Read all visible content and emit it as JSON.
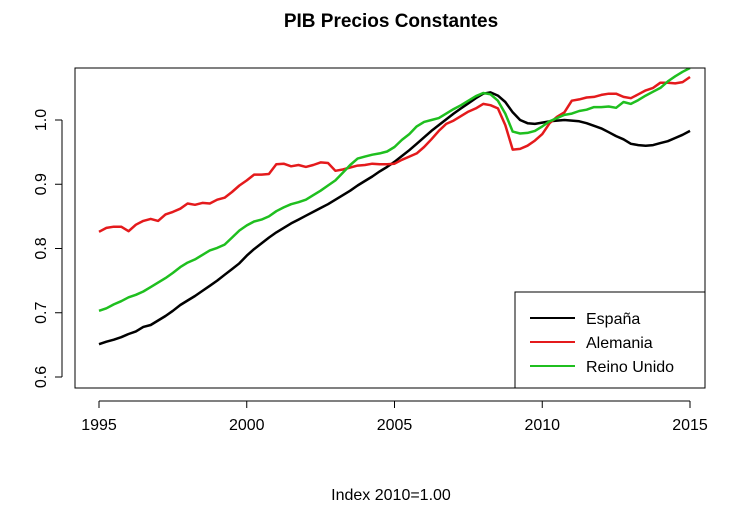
{
  "chart_data": {
    "type": "line",
    "title": "PIB Precios Constantes",
    "xlabel": "Index 2010=1.00",
    "ylabel": "",
    "xlim": [
      1995,
      2015
    ],
    "ylim": [
      0.6,
      1.08
    ],
    "x_ticks": [
      1995,
      2000,
      2005,
      2010,
      2015
    ],
    "y_ticks": [
      0.6,
      0.7,
      0.8,
      0.9,
      1.0
    ],
    "y_tick_labels": [
      "0.6",
      "0.7",
      "0.8",
      "0.9",
      "1.0"
    ],
    "grid": false,
    "legend_position": "bottom-right",
    "series": [
      {
        "name": "España",
        "color": "#000000",
        "points": [
          [
            1995.0,
            0.651
          ],
          [
            1995.25,
            0.655
          ],
          [
            1995.5,
            0.658
          ],
          [
            1995.75,
            0.662
          ],
          [
            1996.0,
            0.667
          ],
          [
            1996.25,
            0.671
          ],
          [
            1996.5,
            0.678
          ],
          [
            1996.75,
            0.681
          ],
          [
            1997.0,
            0.688
          ],
          [
            1997.25,
            0.695
          ],
          [
            1997.5,
            0.703
          ],
          [
            1997.75,
            0.712
          ],
          [
            1998.0,
            0.719
          ],
          [
            1998.25,
            0.726
          ],
          [
            1998.5,
            0.734
          ],
          [
            1998.75,
            0.742
          ],
          [
            1999.0,
            0.75
          ],
          [
            1999.25,
            0.759
          ],
          [
            1999.5,
            0.768
          ],
          [
            1999.75,
            0.777
          ],
          [
            2000.0,
            0.789
          ],
          [
            2000.25,
            0.799
          ],
          [
            2000.5,
            0.808
          ],
          [
            2000.75,
            0.817
          ],
          [
            2001.0,
            0.825
          ],
          [
            2001.25,
            0.832
          ],
          [
            2001.5,
            0.839
          ],
          [
            2001.75,
            0.845
          ],
          [
            2002.0,
            0.851
          ],
          [
            2002.25,
            0.857
          ],
          [
            2002.5,
            0.863
          ],
          [
            2002.75,
            0.869
          ],
          [
            2003.0,
            0.876
          ],
          [
            2003.25,
            0.883
          ],
          [
            2003.5,
            0.89
          ],
          [
            2003.75,
            0.898
          ],
          [
            2004.0,
            0.905
          ],
          [
            2004.25,
            0.912
          ],
          [
            2004.5,
            0.92
          ],
          [
            2004.75,
            0.927
          ],
          [
            2005.0,
            0.935
          ],
          [
            2005.25,
            0.944
          ],
          [
            2005.5,
            0.953
          ],
          [
            2005.75,
            0.963
          ],
          [
            2006.0,
            0.973
          ],
          [
            2006.25,
            0.983
          ],
          [
            2006.5,
            0.992
          ],
          [
            2006.75,
            1.001
          ],
          [
            2007.0,
            1.01
          ],
          [
            2007.25,
            1.018
          ],
          [
            2007.5,
            1.026
          ],
          [
            2007.75,
            1.034
          ],
          [
            2008.0,
            1.041
          ],
          [
            2008.25,
            1.043
          ],
          [
            2008.5,
            1.038
          ],
          [
            2008.75,
            1.028
          ],
          [
            2009.0,
            1.012
          ],
          [
            2009.25,
            1.0
          ],
          [
            2009.5,
            0.995
          ],
          [
            2009.75,
            0.994
          ],
          [
            2010.0,
            0.996
          ],
          [
            2010.25,
            0.998
          ],
          [
            2010.5,
            0.999
          ],
          [
            2010.75,
            1.0
          ],
          [
            2011.0,
            0.999
          ],
          [
            2011.25,
            0.998
          ],
          [
            2011.5,
            0.995
          ],
          [
            2011.75,
            0.991
          ],
          [
            2012.0,
            0.987
          ],
          [
            2012.25,
            0.981
          ],
          [
            2012.5,
            0.975
          ],
          [
            2012.75,
            0.97
          ],
          [
            2013.0,
            0.963
          ],
          [
            2013.25,
            0.961
          ],
          [
            2013.5,
            0.96
          ],
          [
            2013.75,
            0.961
          ],
          [
            2014.0,
            0.964
          ],
          [
            2014.25,
            0.967
          ],
          [
            2014.5,
            0.972
          ],
          [
            2014.75,
            0.977
          ],
          [
            2015.0,
            0.983
          ]
        ]
      },
      {
        "name": "Alemania",
        "color": "#e41a1c",
        "points": [
          [
            1995.0,
            0.826
          ],
          [
            1995.25,
            0.832
          ],
          [
            1995.5,
            0.834
          ],
          [
            1995.75,
            0.834
          ],
          [
            1996.0,
            0.827
          ],
          [
            1996.25,
            0.837
          ],
          [
            1996.5,
            0.843
          ],
          [
            1996.75,
            0.846
          ],
          [
            1997.0,
            0.843
          ],
          [
            1997.25,
            0.853
          ],
          [
            1997.5,
            0.857
          ],
          [
            1997.75,
            0.862
          ],
          [
            1998.0,
            0.87
          ],
          [
            1998.25,
            0.868
          ],
          [
            1998.5,
            0.871
          ],
          [
            1998.75,
            0.87
          ],
          [
            1999.0,
            0.876
          ],
          [
            1999.25,
            0.879
          ],
          [
            1999.5,
            0.888
          ],
          [
            1999.75,
            0.898
          ],
          [
            2000.0,
            0.906
          ],
          [
            2000.25,
            0.915
          ],
          [
            2000.5,
            0.915
          ],
          [
            2000.75,
            0.916
          ],
          [
            2001.0,
            0.931
          ],
          [
            2001.25,
            0.932
          ],
          [
            2001.5,
            0.928
          ],
          [
            2001.75,
            0.93
          ],
          [
            2002.0,
            0.927
          ],
          [
            2002.25,
            0.93
          ],
          [
            2002.5,
            0.934
          ],
          [
            2002.75,
            0.933
          ],
          [
            2003.0,
            0.921
          ],
          [
            2003.25,
            0.923
          ],
          [
            2003.5,
            0.926
          ],
          [
            2003.75,
            0.929
          ],
          [
            2004.0,
            0.93
          ],
          [
            2004.25,
            0.932
          ],
          [
            2004.5,
            0.931
          ],
          [
            2004.75,
            0.931
          ],
          [
            2005.0,
            0.932
          ],
          [
            2005.25,
            0.938
          ],
          [
            2005.5,
            0.943
          ],
          [
            2005.75,
            0.948
          ],
          [
            2006.0,
            0.958
          ],
          [
            2006.25,
            0.97
          ],
          [
            2006.5,
            0.983
          ],
          [
            2006.75,
            0.994
          ],
          [
            2007.0,
            0.999
          ],
          [
            2007.25,
            1.006
          ],
          [
            2007.5,
            1.013
          ],
          [
            2007.75,
            1.018
          ],
          [
            2008.0,
            1.025
          ],
          [
            2008.25,
            1.023
          ],
          [
            2008.5,
            1.018
          ],
          [
            2008.75,
            0.992
          ],
          [
            2009.0,
            0.954
          ],
          [
            2009.25,
            0.955
          ],
          [
            2009.5,
            0.96
          ],
          [
            2009.75,
            0.968
          ],
          [
            2010.0,
            0.978
          ],
          [
            2010.25,
            0.995
          ],
          [
            2010.5,
            1.005
          ],
          [
            2010.75,
            1.012
          ],
          [
            2011.0,
            1.03
          ],
          [
            2011.25,
            1.032
          ],
          [
            2011.5,
            1.035
          ],
          [
            2011.75,
            1.036
          ],
          [
            2012.0,
            1.039
          ],
          [
            2012.25,
            1.041
          ],
          [
            2012.5,
            1.041
          ],
          [
            2012.75,
            1.036
          ],
          [
            2013.0,
            1.034
          ],
          [
            2013.25,
            1.04
          ],
          [
            2013.5,
            1.046
          ],
          [
            2013.75,
            1.05
          ],
          [
            2014.0,
            1.058
          ],
          [
            2014.25,
            1.058
          ],
          [
            2014.5,
            1.057
          ],
          [
            2014.75,
            1.059
          ],
          [
            2015.0,
            1.067
          ]
        ]
      },
      {
        "name": "Reino Unido",
        "color": "#1fbf1f",
        "points": [
          [
            1995.0,
            0.703
          ],
          [
            1995.25,
            0.707
          ],
          [
            1995.5,
            0.713
          ],
          [
            1995.75,
            0.718
          ],
          [
            1996.0,
            0.724
          ],
          [
            1996.25,
            0.728
          ],
          [
            1996.5,
            0.733
          ],
          [
            1996.75,
            0.74
          ],
          [
            1997.0,
            0.747
          ],
          [
            1997.25,
            0.754
          ],
          [
            1997.5,
            0.762
          ],
          [
            1997.75,
            0.771
          ],
          [
            1998.0,
            0.778
          ],
          [
            1998.25,
            0.783
          ],
          [
            1998.5,
            0.79
          ],
          [
            1998.75,
            0.797
          ],
          [
            1999.0,
            0.801
          ],
          [
            1999.25,
            0.806
          ],
          [
            1999.5,
            0.817
          ],
          [
            1999.75,
            0.828
          ],
          [
            2000.0,
            0.836
          ],
          [
            2000.25,
            0.842
          ],
          [
            2000.5,
            0.845
          ],
          [
            2000.75,
            0.85
          ],
          [
            2001.0,
            0.858
          ],
          [
            2001.25,
            0.864
          ],
          [
            2001.5,
            0.869
          ],
          [
            2001.75,
            0.872
          ],
          [
            2002.0,
            0.876
          ],
          [
            2002.25,
            0.883
          ],
          [
            2002.5,
            0.89
          ],
          [
            2002.75,
            0.898
          ],
          [
            2003.0,
            0.906
          ],
          [
            2003.25,
            0.918
          ],
          [
            2003.5,
            0.93
          ],
          [
            2003.75,
            0.94
          ],
          [
            2004.0,
            0.943
          ],
          [
            2004.25,
            0.946
          ],
          [
            2004.5,
            0.948
          ],
          [
            2004.75,
            0.951
          ],
          [
            2005.0,
            0.958
          ],
          [
            2005.25,
            0.969
          ],
          [
            2005.5,
            0.978
          ],
          [
            2005.75,
            0.99
          ],
          [
            2006.0,
            0.997
          ],
          [
            2006.25,
            1.0
          ],
          [
            2006.5,
            1.003
          ],
          [
            2006.75,
            1.01
          ],
          [
            2007.0,
            1.017
          ],
          [
            2007.25,
            1.023
          ],
          [
            2007.5,
            1.03
          ],
          [
            2007.75,
            1.037
          ],
          [
            2008.0,
            1.042
          ],
          [
            2008.25,
            1.04
          ],
          [
            2008.5,
            1.03
          ],
          [
            2008.75,
            1.01
          ],
          [
            2009.0,
            0.982
          ],
          [
            2009.25,
            0.979
          ],
          [
            2009.5,
            0.98
          ],
          [
            2009.75,
            0.983
          ],
          [
            2010.0,
            0.99
          ],
          [
            2010.25,
            0.998
          ],
          [
            2010.5,
            1.003
          ],
          [
            2010.75,
            1.008
          ],
          [
            2011.0,
            1.01
          ],
          [
            2011.25,
            1.014
          ],
          [
            2011.5,
            1.016
          ],
          [
            2011.75,
            1.02
          ],
          [
            2012.0,
            1.02
          ],
          [
            2012.25,
            1.021
          ],
          [
            2012.5,
            1.019
          ],
          [
            2012.75,
            1.028
          ],
          [
            2013.0,
            1.025
          ],
          [
            2013.25,
            1.031
          ],
          [
            2013.5,
            1.038
          ],
          [
            2013.75,
            1.044
          ],
          [
            2014.0,
            1.05
          ],
          [
            2014.25,
            1.06
          ],
          [
            2014.5,
            1.068
          ],
          [
            2014.75,
            1.075
          ],
          [
            2015.0,
            1.081
          ]
        ]
      }
    ]
  }
}
